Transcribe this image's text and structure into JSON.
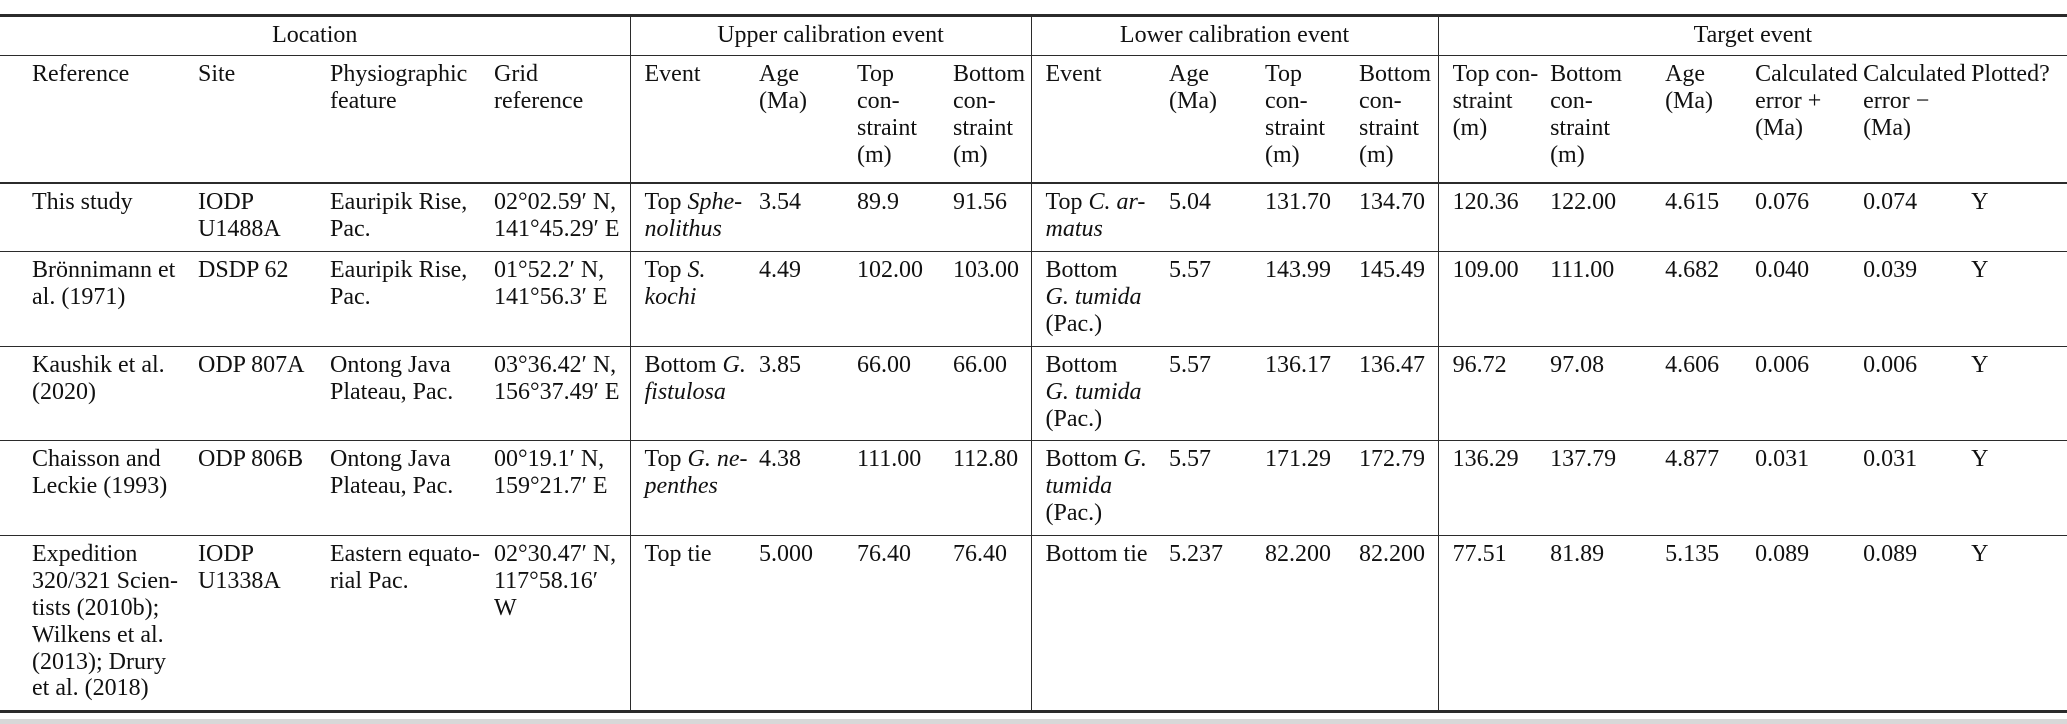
{
  "colors": {
    "background": "#ffffff",
    "rule": "#2b2b2b",
    "text": "#111111",
    "bottom_edge": "#d8d8d8"
  },
  "table": {
    "group_headers": [
      {
        "label": "Location",
        "span": 4
      },
      {
        "label": "Upper calibration event",
        "span": 4
      },
      {
        "label": "Lower calibration event",
        "span": 4
      },
      {
        "label": "Target event",
        "span": 6
      }
    ],
    "column_headers": [
      "Reference",
      "Site",
      "Physiographic\nfeature",
      "Grid\nreference",
      "Event",
      "Age\n(Ma)",
      "Top\ncon-\nstraint\n(m)",
      "Bottom\ncon-\nstraint\n(m)",
      "Event",
      "Age\n(Ma)",
      "Top\ncon-\nstraint\n(m)",
      "Bottom\ncon-\nstraint\n(m)",
      "Top con-\nstraint\n(m)",
      "Bottom\ncon-\nstraint\n(m)",
      "Age\n(Ma)",
      "Calculated\nerror +\n(Ma)",
      "Calculated\nerror −\n(Ma)",
      "Plotted?"
    ],
    "rows": [
      [
        "This study",
        "IODP\nU1488A",
        "Eauripik Rise,\nPac.",
        "02°02.59′ N,\n141°45.29′ E",
        [
          {
            "text": "Top ",
            "italic": false
          },
          {
            "text": "Sphe-\nnolithus",
            "italic": true
          }
        ],
        "3.54",
        "89.9",
        "91.56",
        [
          {
            "text": "Top ",
            "italic": false
          },
          {
            "text": "C. ar-\nmatus",
            "italic": true
          }
        ],
        "5.04",
        "131.70",
        "134.70",
        "120.36",
        "122.00",
        "4.615",
        "0.076",
        "0.074",
        "Y"
      ],
      [
        "Brönnimann et\nal. (1971)",
        "DSDP 62",
        "Eauripik Rise,\nPac.",
        "01°52.2′ N,\n141°56.3′ E",
        [
          {
            "text": "Top ",
            "italic": false
          },
          {
            "text": "S.\nkochi",
            "italic": true
          }
        ],
        "4.49",
        "102.00",
        "103.00",
        [
          {
            "text": "Bottom\n",
            "italic": false
          },
          {
            "text": "G. tumida",
            "italic": true
          },
          {
            "text": "\n(Pac.)",
            "italic": false
          }
        ],
        "5.57",
        "143.99",
        "145.49",
        "109.00",
        "111.00",
        "4.682",
        "0.040",
        "0.039",
        "Y"
      ],
      [
        "Kaushik et al.\n(2020)",
        "ODP 807A",
        "Ontong Java\nPlateau, Pac.",
        "03°36.42′ N,\n156°37.49′ E",
        [
          {
            "text": "Bottom ",
            "italic": false
          },
          {
            "text": "G.\nfistulosa",
            "italic": true
          }
        ],
        "3.85",
        "66.00",
        "66.00",
        [
          {
            "text": "Bottom\n",
            "italic": false
          },
          {
            "text": "G. tumida",
            "italic": true
          },
          {
            "text": "\n(Pac.)",
            "italic": false
          }
        ],
        "5.57",
        "136.17",
        "136.47",
        "96.72",
        "97.08",
        "4.606",
        "0.006",
        "0.006",
        "Y"
      ],
      [
        "Chaisson and\nLeckie (1993)",
        "ODP 806B",
        "Ontong Java\nPlateau, Pac.",
        "00°19.1′ N,\n159°21.7′ E",
        [
          {
            "text": "Top ",
            "italic": false
          },
          {
            "text": "G. ne-\npenthes",
            "italic": true
          }
        ],
        "4.38",
        "111.00",
        "112.80",
        [
          {
            "text": "Bottom ",
            "italic": false
          },
          {
            "text": "G.\ntumida",
            "italic": true
          },
          {
            "text": "\n(Pac.)",
            "italic": false
          }
        ],
        "5.57",
        "171.29",
        "172.79",
        "136.29",
        "137.79",
        "4.877",
        "0.031",
        "0.031",
        "Y"
      ],
      [
        "Expedition\n320/321 Scien-\ntists (2010b);\nWilkens et al.\n(2013); Drury\net al. (2018)",
        "IODP\nU1338A",
        "Eastern equato-\nrial Pac.",
        "02°30.47′ N,\n117°58.16′ W",
        "Top tie",
        "5.000",
        "76.40",
        "76.40",
        "Bottom tie",
        "5.237",
        "82.200",
        "82.200",
        "77.51",
        "81.89",
        "5.135",
        "0.089",
        "0.089",
        "Y"
      ]
    ]
  }
}
